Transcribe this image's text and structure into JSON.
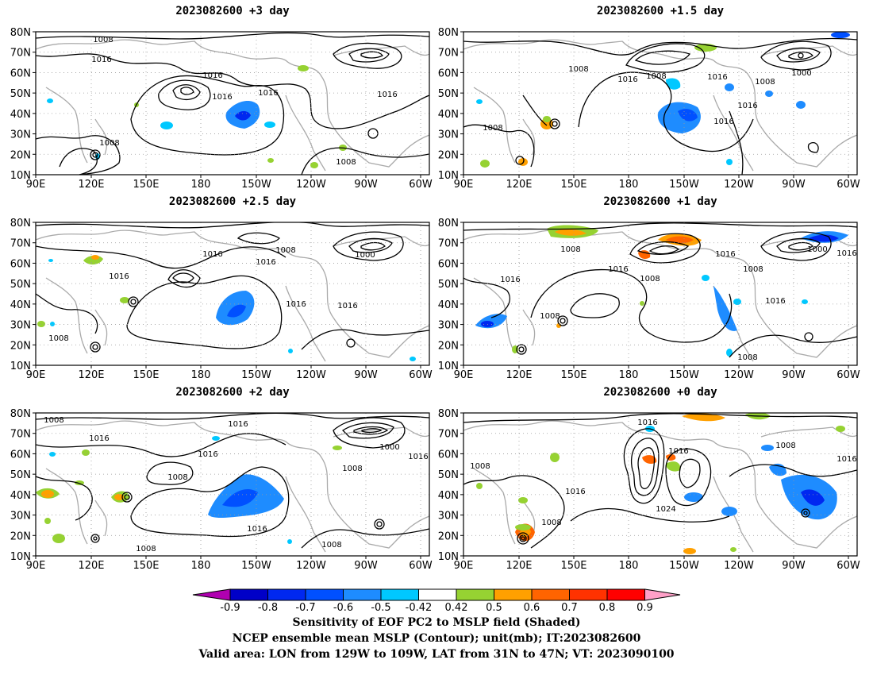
{
  "panels": [
    {
      "title": "2023082600  +3 day"
    },
    {
      "title": "2023082600  +1.5 day"
    },
    {
      "title": "2023082600  +2.5 day"
    },
    {
      "title": "2023082600  +1 day"
    },
    {
      "title": "2023082600  +2 day"
    },
    {
      "title": "2023082600  +0 day"
    }
  ],
  "axes": {
    "lat_labels": [
      "80N",
      "70N",
      "60N",
      "50N",
      "40N",
      "30N",
      "20N",
      "10N"
    ],
    "lon_labels": [
      "90E",
      "120E",
      "150E",
      "180",
      "150W",
      "120W",
      "90W",
      "60W"
    ]
  },
  "contour_labels": {
    "p0": [
      "1008",
      "1016",
      "1016",
      "1016",
      "1016",
      "1008",
      "1008",
      "1016"
    ],
    "p1": [
      "1008",
      "1016",
      "1008",
      "1016",
      "1008",
      "1000",
      "1016",
      "1016",
      "1008"
    ],
    "p2": [
      "1016",
      "1008",
      "1016",
      "1016",
      "1000",
      "1016",
      "1016",
      "1008"
    ],
    "p3": [
      "1008",
      "1016",
      "1016",
      "1008",
      "1016",
      "1000",
      "1008",
      "1016",
      "1016",
      "1008",
      "1008"
    ],
    "p4": [
      "1008",
      "1016",
      "1016",
      "1008",
      "1016",
      "1008",
      "1000",
      "1016",
      "1016",
      "1008",
      "1008"
    ],
    "p5": [
      "1008",
      "1016",
      "1008",
      "1016",
      "1016",
      "1024",
      "1016",
      "1008"
    ]
  },
  "colorbar": {
    "ticks": [
      "-0.9",
      "-0.8",
      "-0.7",
      "-0.6",
      "-0.5",
      "-0.42",
      "0.42",
      "0.5",
      "0.6",
      "0.7",
      "0.8",
      "0.9"
    ],
    "colors": [
      "#b000b0",
      "#0000c8",
      "#0028f0",
      "#0050ff",
      "#1e8cff",
      "#00c8ff",
      "#ffffff",
      "#96d232",
      "#ffa000",
      "#ff6400",
      "#ff3200",
      "#ff0000",
      "#ffa0c8"
    ]
  },
  "caption": {
    "line1": "Sensitivity of EOF PC2 to MSLP field (Shaded)",
    "line2": "NCEP ensemble mean MSLP (Contour); unit(mb); IT:2023082600",
    "line3": "Valid area: LON from 129W to 109W, LAT from 31N to 47N; VT: 2023090100"
  }
}
